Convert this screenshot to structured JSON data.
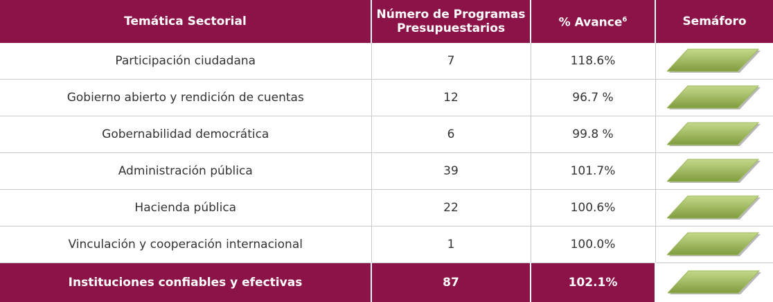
{
  "header": {
    "col1": "Temática Sectorial",
    "col2": "Número de Programas Presupuestarios",
    "col3": "% Avance",
    "col3_sup": "6",
    "col4": "Semáforo"
  },
  "rows": [
    {
      "tematica": "Participación ciudadana",
      "programas": "7",
      "avance": "118.6%"
    },
    {
      "tematica": "Gobierno abierto y rendición de cuentas",
      "programas": "12",
      "avance": "96.7 %"
    },
    {
      "tematica": "Gobernabilidad democrática",
      "programas": "6",
      "avance": "99.8 %"
    },
    {
      "tematica": "Administración pública",
      "programas": "39",
      "avance": "101.7%"
    },
    {
      "tematica": "Hacienda pública",
      "programas": "22",
      "avance": "100.6%"
    },
    {
      "tematica": "Vinculación y cooperación internacional",
      "programas": "1",
      "avance": "100.0%"
    }
  ],
  "total": {
    "tematica": "Instituciones confiables y efectivas",
    "programas": "87",
    "avance": "102.1%"
  },
  "colors": {
    "header_bg": "#8c1347",
    "semaforo_green": "#9cb85a"
  }
}
